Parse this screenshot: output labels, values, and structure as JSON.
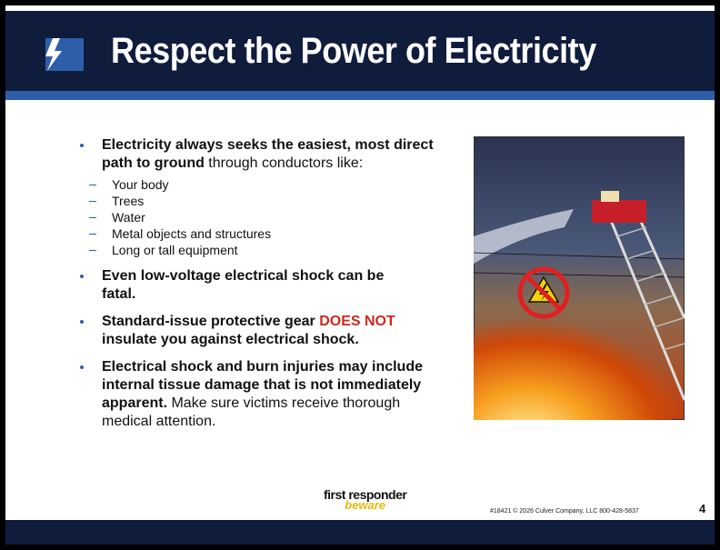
{
  "header": {
    "title": "Respect the Power of Electricity"
  },
  "bullets": [
    {
      "segments": [
        {
          "text": "Electricity always seeks the easiest, most direct path to ground",
          "style": "bold"
        },
        {
          "text": " through conductors like:",
          "style": "normal"
        }
      ],
      "subitems": [
        "Your body",
        "Trees",
        "Water",
        "Metal objects and structures",
        "Long or tall equipment"
      ]
    },
    {
      "segments": [
        {
          "text": "Even low-voltage electrical shock can be fatal.",
          "style": "bold"
        }
      ]
    },
    {
      "segments": [
        {
          "text": "Standard-issue protective gear ",
          "style": "bold"
        },
        {
          "text": "DOES NOT",
          "style": "alert"
        },
        {
          "text": " insulate you against electrical shock.",
          "style": "bold"
        }
      ]
    },
    {
      "segments": [
        {
          "text": "Electrical shock and burn injuries may include internal tissue damage that is not immediately apparent.",
          "style": "bold"
        },
        {
          "text": " Make sure victims receive thorough medical attention.",
          "style": "normal"
        }
      ]
    }
  ],
  "footer": {
    "logo_top": "first responder",
    "logo_bottom": "beware",
    "copyright": "#18421 © 2026 Culver Company, LLC 800-428-5837",
    "page_number": "4"
  }
}
